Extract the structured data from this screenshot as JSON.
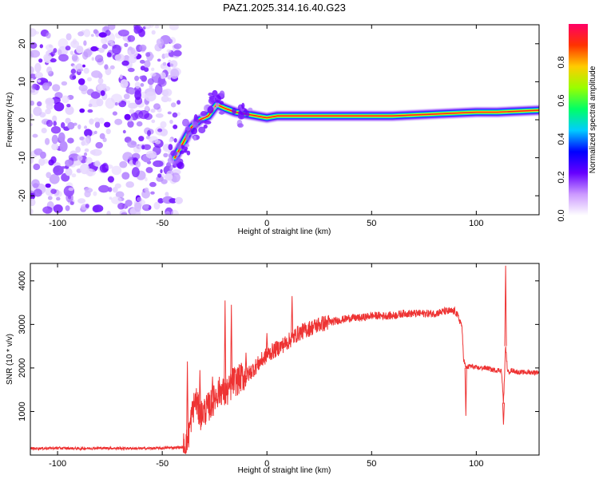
{
  "title": "PAZ1.2025.314.16.40.G23",
  "chart_data": [
    {
      "type": "heatmap",
      "name": "spectrogram",
      "title": "PAZ1.2025.314.16.40.G23",
      "xlabel": "Height of straight line (km)",
      "ylabel": "Frequency (Hz)",
      "xlim": [
        -113,
        130
      ],
      "ylim": [
        -25,
        25
      ],
      "xticks": [
        -100,
        -50,
        0,
        50,
        100
      ],
      "yticks": [
        -20,
        -10,
        0,
        10,
        20
      ],
      "ridge": {
        "description": "high-amplitude Doppler ridge",
        "x": [
          -44,
          -40,
          -36,
          -32,
          -28,
          -24,
          -20,
          -15,
          -10,
          -5,
          0,
          5,
          10,
          20,
          40,
          60,
          80,
          100,
          110,
          130
        ],
        "freq": [
          -10,
          -6,
          -2,
          0,
          1,
          4,
          3,
          2,
          1.5,
          1,
          0.5,
          1,
          1,
          1,
          1,
          1,
          1.5,
          2,
          2,
          2.5
        ]
      },
      "noise_region": {
        "x_range": [
          -113,
          -45
        ],
        "freq_range": [
          -25,
          25
        ]
      },
      "colorbar": {
        "label": "Normalized spectral amplitude",
        "range": [
          0,
          1
        ],
        "ticks": [
          "0.0",
          "0.2",
          "0.4",
          "0.6",
          "0.8"
        ],
        "colors": [
          "#ffffff",
          "#cc99ff",
          "#6600ff",
          "#0000ff",
          "#00ccff",
          "#00ff66",
          "#99ff00",
          "#ffcc00",
          "#ff3300",
          "#ff0066"
        ]
      }
    },
    {
      "type": "line",
      "name": "snr",
      "xlabel": "Height of straight line (km)",
      "ylabel": "SNR (10 * v/v)",
      "xlim": [
        -113,
        130
      ],
      "ylim": [
        0,
        4400
      ],
      "xticks": [
        -100,
        -50,
        0,
        50,
        100
      ],
      "yticks": [
        1000,
        2000,
        3000,
        4000
      ],
      "color": "#ee3333",
      "series": [
        {
          "name": "SNR",
          "x": [
            -113,
            -100,
            -90,
            -80,
            -70,
            -60,
            -50,
            -45,
            -40,
            -38,
            -36,
            -34,
            -32,
            -30,
            -28,
            -26,
            -24,
            -22,
            -20,
            -18,
            -16,
            -14,
            -12,
            -10,
            -8,
            -6,
            -4,
            -2,
            0,
            5,
            10,
            15,
            20,
            25,
            30,
            35,
            40,
            45,
            50,
            55,
            60,
            65,
            70,
            75,
            80,
            85,
            90,
            93,
            94,
            95,
            97,
            100,
            105,
            108,
            110,
            112,
            113,
            114,
            115,
            117,
            120,
            125,
            130
          ],
          "y": [
            150,
            160,
            150,
            160,
            155,
            150,
            160,
            170,
            180,
            300,
            900,
            1300,
            900,
            1000,
            1100,
            1200,
            1400,
            1500,
            1400,
            1500,
            1700,
            1700,
            1800,
            1800,
            1900,
            2000,
            2100,
            2200,
            2300,
            2450,
            2600,
            2800,
            2900,
            3000,
            3050,
            3100,
            3150,
            3150,
            3200,
            3200,
            3200,
            3250,
            3250,
            3250,
            3250,
            3300,
            3300,
            3000,
            2200,
            2000,
            2050,
            2000,
            2000,
            1950,
            1950,
            1950,
            1200,
            2500,
            1900,
            1950,
            1900,
            1900,
            1900
          ]
        }
      ],
      "spikes": [
        {
          "x": -38,
          "y": 2150
        },
        {
          "x": -32,
          "y": 1950
        },
        {
          "x": -26,
          "y": 1800
        },
        {
          "x": -20,
          "y": 3550
        },
        {
          "x": -17,
          "y": 3450
        },
        {
          "x": -10,
          "y": 2350
        },
        {
          "x": 0,
          "y": 2800
        },
        {
          "x": 12,
          "y": 3650
        },
        {
          "x": 95,
          "y": 900
        },
        {
          "x": 113,
          "y": 700
        },
        {
          "x": 114,
          "y": 4350
        }
      ]
    }
  ]
}
